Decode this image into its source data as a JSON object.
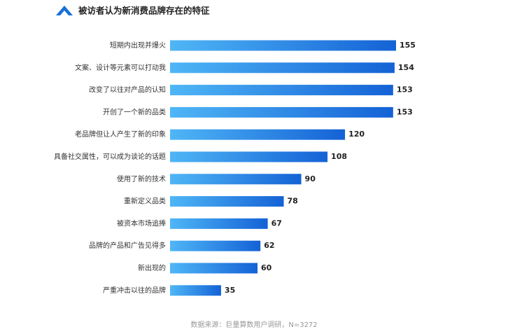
{
  "chart_data": {
    "type": "bar",
    "orientation": "horizontal",
    "title": "被访者认为新消费品牌存在的特征",
    "categories": [
      "短期内出现并爆火",
      "文案、设计等元素可以打动我",
      "改变了以往对产品的认知",
      "开创了一个新的品类",
      "老品牌但让人产生了新的印象",
      "具备社交属性，可以成为谈论的话题",
      "使用了新的技术",
      "重新定义品类",
      "被资本市场追捧",
      "品牌的产品和广告见得多",
      "新出现的",
      "严重冲击以往的品牌"
    ],
    "values": [
      155,
      154,
      153,
      153,
      120,
      108,
      90,
      78,
      67,
      62,
      60,
      35
    ],
    "color": [
      "#4fb6f6",
      "#1462d6"
    ],
    "source": "数据来源：巨量算数用户调研，N=3272"
  }
}
